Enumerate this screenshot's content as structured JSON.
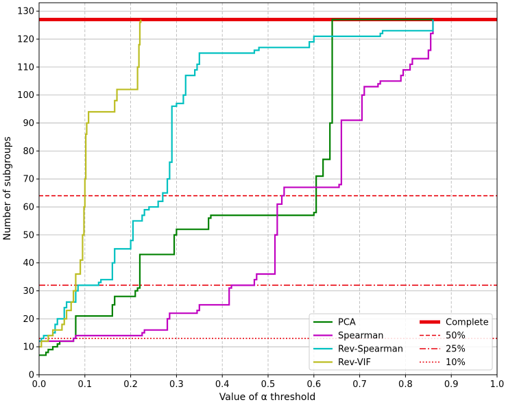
{
  "chart_data": {
    "type": "line",
    "title": "",
    "xlabel": "Value of α threshold",
    "ylabel": "Number of subgroups",
    "xlim": [
      0.0,
      1.0
    ],
    "ylim": [
      0,
      133
    ],
    "xticks": [
      "0.0",
      "0.1",
      "0.2",
      "0.3",
      "0.4",
      "0.5",
      "0.6",
      "0.7",
      "0.8",
      "0.9",
      "1.0"
    ],
    "yticks": [
      "0",
      "10",
      "20",
      "30",
      "40",
      "50",
      "60",
      "70",
      "80",
      "90",
      "100",
      "110",
      "120",
      "130"
    ],
    "x_grid": "dashed vertical",
    "y_grid": "solid horizontal",
    "legend_position": "lower-right",
    "series": [
      {
        "name": "PCA",
        "color": "#008000",
        "step": true,
        "x": [
          0.0,
          0.015,
          0.02,
          0.03,
          0.04,
          0.045,
          0.075,
          0.08,
          0.16,
          0.165,
          0.21,
          0.215,
          0.22,
          0.295,
          0.3,
          0.37,
          0.375,
          0.58,
          0.6,
          0.605,
          0.61,
          0.62,
          0.635,
          0.64,
          0.86
        ],
        "y": [
          7,
          8,
          9,
          10,
          11,
          12,
          13,
          21,
          25,
          28,
          30,
          31,
          43,
          50,
          52,
          56,
          57,
          57,
          58,
          71,
          71,
          77,
          90,
          127,
          127
        ]
      },
      {
        "name": "Spearman",
        "color": "#c000c0",
        "step": true,
        "x": [
          0.0,
          0.075,
          0.08,
          0.225,
          0.23,
          0.28,
          0.285,
          0.345,
          0.35,
          0.415,
          0.42,
          0.47,
          0.475,
          0.515,
          0.52,
          0.53,
          0.535,
          0.655,
          0.66,
          0.705,
          0.71,
          0.74,
          0.745,
          0.79,
          0.795,
          0.81,
          0.815,
          0.85,
          0.855,
          0.86
        ],
        "y": [
          12,
          13,
          14,
          15,
          16,
          20,
          22,
          23,
          25,
          31,
          32,
          34,
          36,
          50,
          61,
          64,
          67,
          68,
          91,
          100,
          103,
          104,
          105,
          107,
          109,
          111,
          113,
          116,
          122,
          127
        ]
      },
      {
        "name": "Rev-Spearman",
        "color": "#00c0c0",
        "step": true,
        "x": [
          0.0,
          0.005,
          0.01,
          0.03,
          0.035,
          0.04,
          0.055,
          0.06,
          0.08,
          0.085,
          0.13,
          0.135,
          0.16,
          0.165,
          0.2,
          0.205,
          0.21,
          0.225,
          0.23,
          0.24,
          0.26,
          0.27,
          0.28,
          0.285,
          0.29,
          0.3,
          0.315,
          0.32,
          0.34,
          0.345,
          0.35,
          0.47,
          0.48,
          0.59,
          0.6,
          0.745,
          0.75,
          0.85,
          0.86
        ],
        "y": [
          12,
          13,
          14,
          15,
          18,
          20,
          24,
          26,
          30,
          32,
          33,
          34,
          40,
          45,
          48,
          55,
          55,
          57,
          59,
          60,
          62,
          65,
          70,
          76,
          96,
          97,
          100,
          107,
          109,
          111,
          115,
          116,
          117,
          119,
          121,
          122,
          123,
          123,
          127
        ]
      },
      {
        "name": "Rev-VIF",
        "color": "#bcbd22",
        "step": true,
        "x": [
          0.0,
          0.005,
          0.02,
          0.03,
          0.05,
          0.055,
          0.06,
          0.07,
          0.075,
          0.08,
          0.09,
          0.095,
          0.098,
          0.1,
          0.102,
          0.104,
          0.108,
          0.16,
          0.165,
          0.17,
          0.21,
          0.215,
          0.218,
          0.22,
          0.222
        ],
        "y": [
          10,
          12,
          14,
          16,
          18,
          20,
          23,
          26,
          30,
          36,
          41,
          50,
          60,
          70,
          86,
          90,
          94,
          94,
          98,
          102,
          102,
          110,
          118,
          126,
          127
        ]
      }
    ],
    "reference_lines": [
      {
        "name": "Complete",
        "y": 127,
        "color": "#e8000b",
        "style": "solid-thick"
      },
      {
        "name": "50%",
        "y": 64,
        "color": "#e8000b",
        "style": "dashed"
      },
      {
        "name": "25%",
        "y": 32,
        "color": "#e8000b",
        "style": "dashdot"
      },
      {
        "name": "10%",
        "y": 13,
        "color": "#e8000b",
        "style": "dotted"
      }
    ],
    "legend": {
      "column1": [
        "PCA",
        "Spearman",
        "Rev-Spearman",
        "Rev-VIF"
      ],
      "column2": [
        "Complete",
        "50%",
        "25%",
        "10%"
      ]
    }
  }
}
